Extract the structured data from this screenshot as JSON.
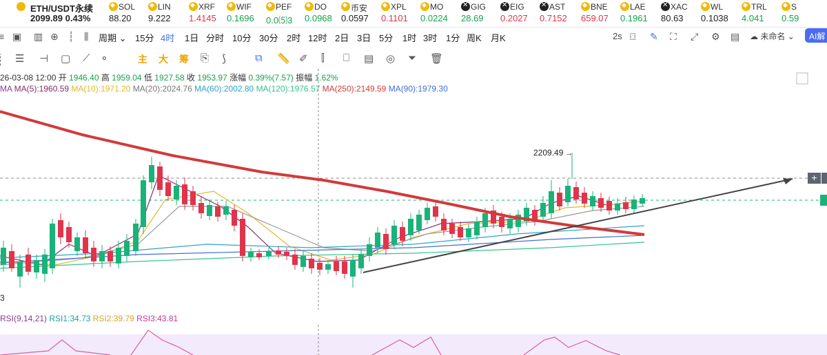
{
  "main": {
    "name": "ETH/USDT永续",
    "price": "2099.89",
    "change": "0.43%"
  },
  "tickers": [
    {
      "name": "SOL",
      "value": "88.20",
      "dir": "nu",
      "coin": "b"
    },
    {
      "name": "LIN",
      "value": "9.222",
      "dir": "nu",
      "coin": "b"
    },
    {
      "name": "XRF",
      "value": "1.4145",
      "dir": "dn",
      "coin": "b"
    },
    {
      "name": "WIF",
      "value": "0.1696",
      "dir": "up",
      "coin": "b"
    },
    {
      "name": "PEF",
      "value": "0.0⑸3",
      "dir": "up",
      "coin": "b"
    },
    {
      "name": "DO",
      "value": "0.0968",
      "dir": "up",
      "coin": "b"
    },
    {
      "name": "币安",
      "value": "0.0597",
      "dir": "nu",
      "coin": "b"
    },
    {
      "name": "XPL",
      "value": "0.1101",
      "dir": "dn",
      "coin": "b"
    },
    {
      "name": "MO",
      "value": "0.0224",
      "dir": "up",
      "coin": "b"
    },
    {
      "name": "GIG",
      "value": "28.69",
      "dir": "up",
      "coin": "x"
    },
    {
      "name": "EIG",
      "value": "0.2027",
      "dir": "dn",
      "coin": "x"
    },
    {
      "name": "AST",
      "value": "0.7152",
      "dir": "dn",
      "coin": "x"
    },
    {
      "name": "BNE",
      "value": "659.07",
      "dir": "dn",
      "coin": "b"
    },
    {
      "name": "LAE",
      "value": "0.1961",
      "dir": "up",
      "coin": "b"
    },
    {
      "name": "XAC",
      "value": "80.63",
      "dir": "nu",
      "coin": "x"
    },
    {
      "name": "WL",
      "value": "0.1038",
      "dir": "nu",
      "coin": "b"
    },
    {
      "name": "TRL",
      "value": "4.041",
      "dir": "up",
      "coin": "b"
    },
    {
      "name": "S",
      "value": "0.59",
      "dir": "up",
      "coin": "b"
    }
  ],
  "toolbar1": {
    "period_label": "周期",
    "timeframes": [
      "15分",
      "4时",
      "1日",
      "分时",
      "10分",
      "30分",
      "2时",
      "12时",
      "2日",
      "3日",
      "5分",
      "1时",
      "3时",
      "1分",
      "周K",
      "月K"
    ],
    "active": "4时",
    "interval": "2s",
    "layout_name": "未命名",
    "ai_label": "AI解"
  },
  "toolbar2": {
    "zhu": "主",
    "da": "大",
    "chou": "筹"
  },
  "ohlc": {
    "date": "26-03-08 12:00",
    "open_label": "开",
    "open": "1946.40",
    "high_label": "高",
    "high": "1959.04",
    "low_label": "低",
    "low": "1927.58",
    "close_label": "收",
    "close": "1953.97",
    "change_label": "涨幅",
    "change": "0.39%(7.57)",
    "amp_label": "振幅",
    "amp": "1.62%"
  },
  "ma": [
    {
      "text": "MA",
      "color": "#8a3d8f"
    },
    {
      "text": "MA(5):1960.59",
      "color": "#8a2c6a"
    },
    {
      "text": "MA(10):1971.20",
      "color": "#e0b92a"
    },
    {
      "text": "MA(20):2024.76",
      "color": "#777777"
    },
    {
      "text": "MA(60):2002.80",
      "color": "#2ea3c7"
    },
    {
      "text": "MA(120):1976.57",
      "color": "#33c48f"
    },
    {
      "text": "MA(250):2149.59",
      "color": "#d23a3a"
    },
    {
      "text": "MA(90):1979.30",
      "color": "#3f6fd6"
    }
  ],
  "rsi": [
    {
      "text": "RSI(9,14,21)",
      "color": "#8a3d8f"
    },
    {
      "text": "RSI1:34.73",
      "color": "#1aa3a3"
    },
    {
      "text": "RSI2:39.79",
      "color": "#e0a02a"
    },
    {
      "text": "RSI3:43.81",
      "color": "#c0389a"
    }
  ],
  "chart": {
    "high_label": "2209.49",
    "left_label": "3"
  },
  "colors": {
    "up": "#16a34a",
    "down": "#e0344b",
    "accent": "#3c6ff0"
  }
}
